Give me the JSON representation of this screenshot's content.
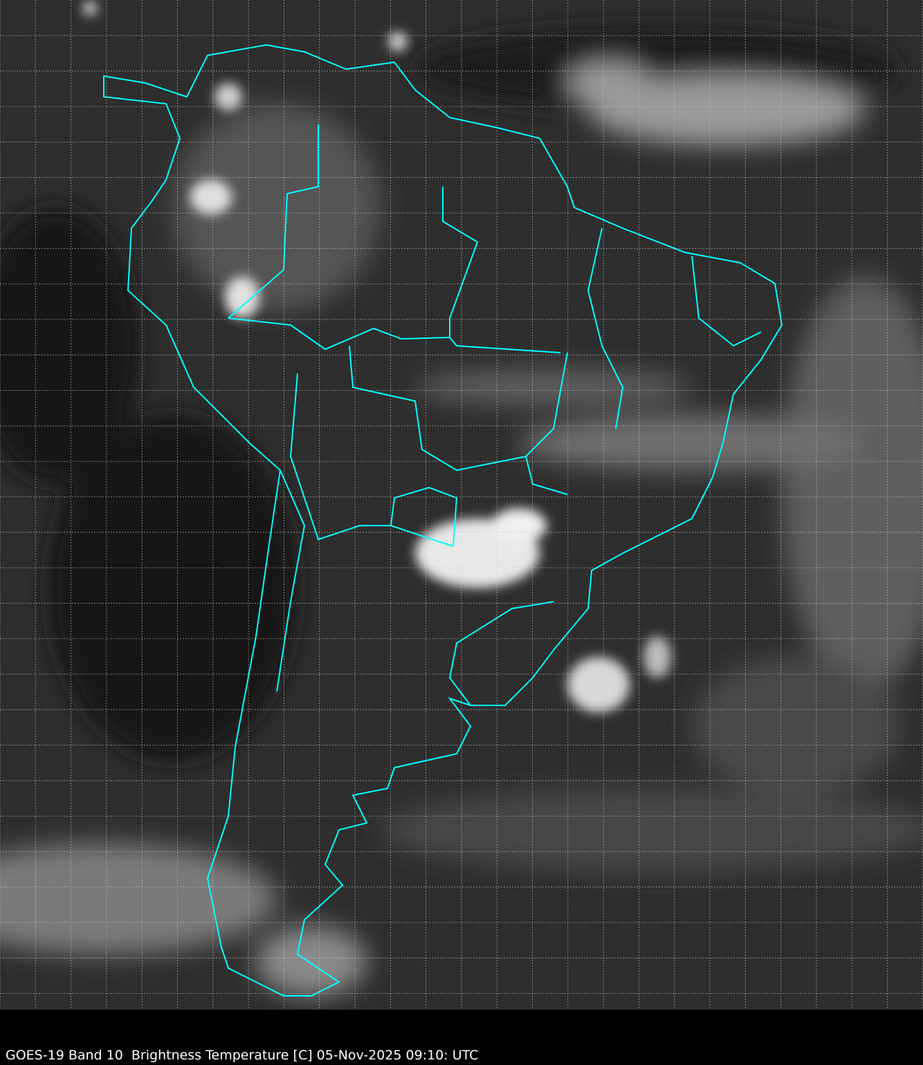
{
  "caption": "GOES-19 Band 10  Brightness Temperature [C] 05-Nov-2025 09:10: UTC",
  "colors": {
    "background": "#000000",
    "imagery_base": "#2e2e2e",
    "boundary_lines": "#00ffff",
    "grid_lines": "#c8c8c8",
    "caption_text": "#ffffff"
  },
  "map": {
    "region": "South America",
    "imagery": "infrared brightness temperature, grayscale",
    "grid": true,
    "grid_style": "dashed"
  }
}
